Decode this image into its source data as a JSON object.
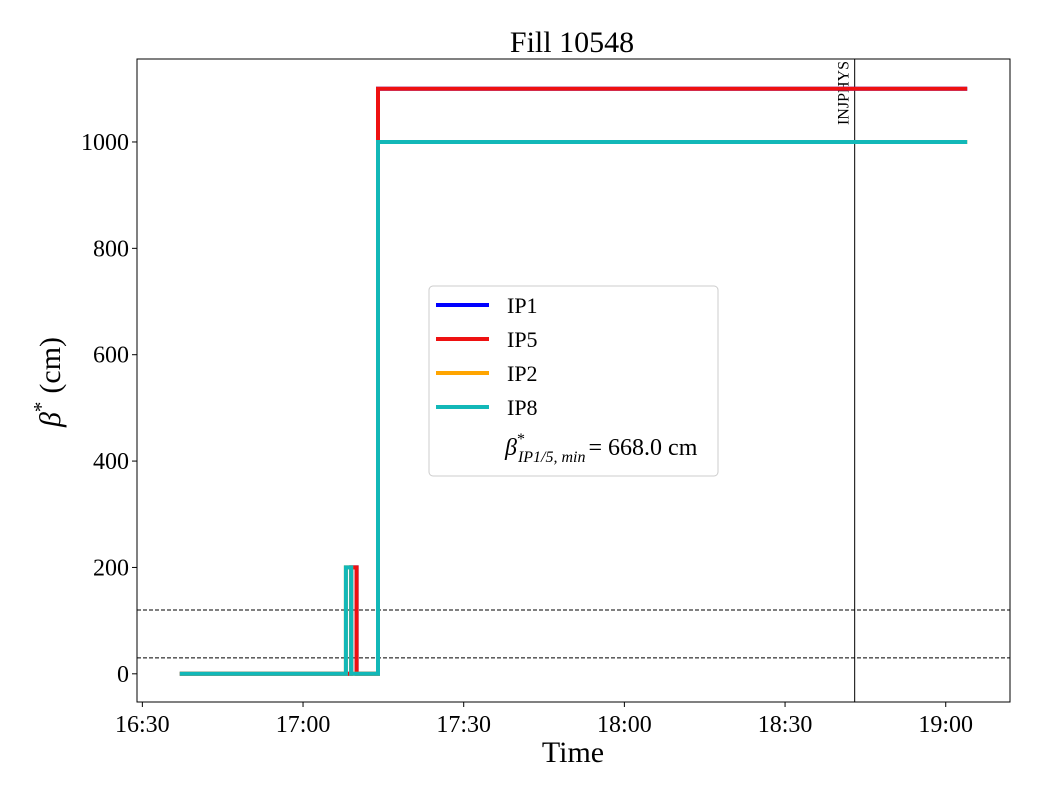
{
  "chart_data": {
    "type": "line",
    "title": "Fill 10548",
    "xlabel": "Time",
    "ylabel": {
      "base": "β",
      "sup": "*",
      "rest": "(cm)"
    },
    "step": true,
    "xlim": [
      "16:29",
      "19:12"
    ],
    "xticks": [
      "16:30",
      "17:00",
      "17:30",
      "18:00",
      "18:30",
      "19:00"
    ],
    "ylim": [
      -53,
      1156
    ],
    "yticks": [
      0,
      200,
      400,
      600,
      800,
      1000
    ],
    "series": [
      {
        "name": "IP1",
        "color": "#0000ff",
        "x": [
          "16:37",
          "17:09",
          "17:09",
          "17:10",
          "17:10",
          "17:14",
          "17:14",
          "19:04"
        ],
        "values": [
          0,
          0,
          200,
          200,
          0,
          0,
          1100,
          1100
        ]
      },
      {
        "name": "IP5",
        "color": "#ee1111",
        "x": [
          "16:37",
          "17:09",
          "17:09",
          "17:10",
          "17:10",
          "17:14",
          "17:14",
          "19:04"
        ],
        "values": [
          0,
          0,
          200,
          200,
          0,
          0,
          1100,
          1100
        ]
      },
      {
        "name": "IP2",
        "color": "#ffa500",
        "x": [
          "16:37",
          "17:08",
          "17:08",
          "17:09",
          "17:09",
          "17:14",
          "17:14",
          "19:04"
        ],
        "values": [
          0,
          0,
          200,
          200,
          0,
          0,
          1000,
          1000
        ]
      },
      {
        "name": "IP8",
        "color": "#12b8b8",
        "x": [
          "16:37",
          "17:08",
          "17:08",
          "17:09",
          "17:09",
          "17:14",
          "17:14",
          "19:04"
        ],
        "values": [
          0,
          0,
          200,
          200,
          0,
          0,
          1000,
          1000
        ]
      }
    ],
    "legend_note": {
      "base": "β",
      "sup": "*",
      "sub": "IP1/5, min",
      "rest": "= 668.0 cm"
    },
    "hlines": [
      120,
      30
    ],
    "vline": {
      "x": "18:43",
      "label": "INJPHYS"
    }
  }
}
